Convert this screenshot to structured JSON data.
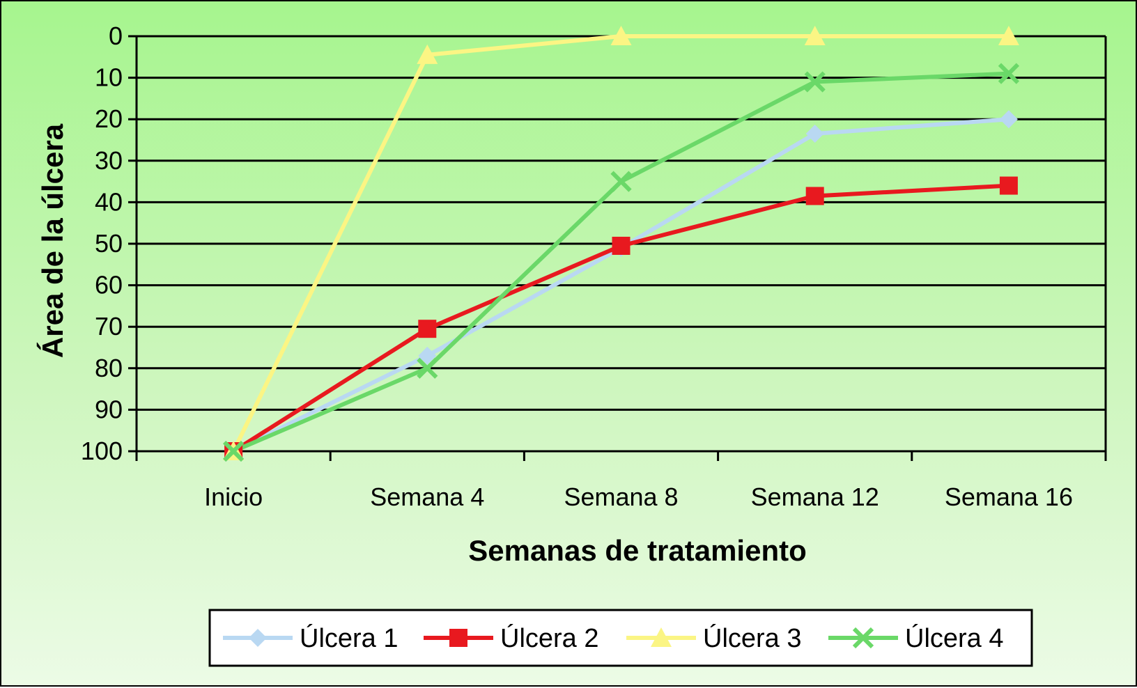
{
  "chart_data": {
    "type": "line",
    "title": "",
    "xlabel": "Semanas de tratamiento",
    "ylabel": "Área de la úlcera",
    "categories": [
      "Inicio",
      "Semana 4",
      "Semana 8",
      "Semana 12",
      "Semana 16"
    ],
    "y_ticks": [
      0,
      10,
      20,
      30,
      40,
      50,
      60,
      70,
      80,
      90,
      100
    ],
    "ylim": [
      100,
      0
    ],
    "y_inverted": true,
    "grid": true,
    "legend_position": "bottom",
    "series": [
      {
        "name": "Úlcera 1",
        "values": [
          100,
          77,
          51,
          23.5,
          20
        ],
        "color": "#b9d8f2",
        "marker": "diamond"
      },
      {
        "name": "Úlcera 2",
        "values": [
          100,
          70.5,
          50.5,
          38.5,
          36
        ],
        "color": "#e8191f",
        "marker": "square"
      },
      {
        "name": "Úlcera 3",
        "values": [
          100,
          4.5,
          0,
          0,
          0
        ],
        "color": "#fbf584",
        "marker": "triangle"
      },
      {
        "name": "Úlcera 4",
        "values": [
          100,
          80,
          35,
          11,
          9
        ],
        "color": "#6ad868",
        "marker": "x"
      }
    ]
  }
}
